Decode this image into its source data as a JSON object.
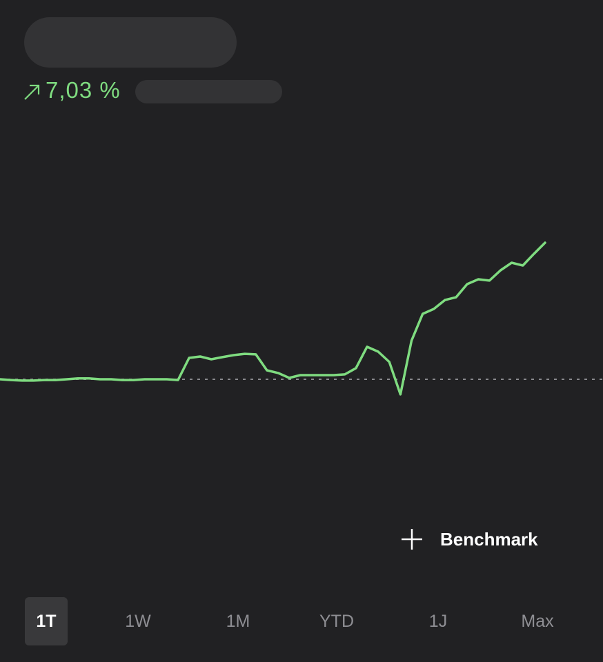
{
  "header": {
    "change": "7,03 %"
  },
  "chart_data": {
    "type": "line",
    "color": "#7fdc80",
    "baseline": 0,
    "baseline_color": "#8a8a8e",
    "ylim": [
      -6.75,
      13.14
    ],
    "values": [
      0,
      -0.04,
      -0.07,
      -0.07,
      -0.04,
      -0.04,
      0,
      0.04,
      0.04,
      0,
      0,
      -0.04,
      -0.04,
      0,
      0,
      0,
      -0.04,
      1.1,
      1.17,
      1.03,
      1.14,
      1.24,
      1.31,
      1.28,
      0.46,
      0.32,
      0.07,
      0.21,
      0.21,
      0.21,
      0.21,
      0.25,
      0.57,
      1.67,
      1.42,
      0.89,
      -0.78,
      1.99,
      3.37,
      3.62,
      4.08,
      4.22,
      4.9,
      5.15,
      5.08,
      5.61,
      6.0,
      5.86,
      6.46,
      7.03
    ]
  },
  "benchmark": "Benchmark",
  "tabs": [
    "1T",
    "1W",
    "1M",
    "YTD",
    "1J",
    "Max"
  ],
  "selected_tab": 0
}
